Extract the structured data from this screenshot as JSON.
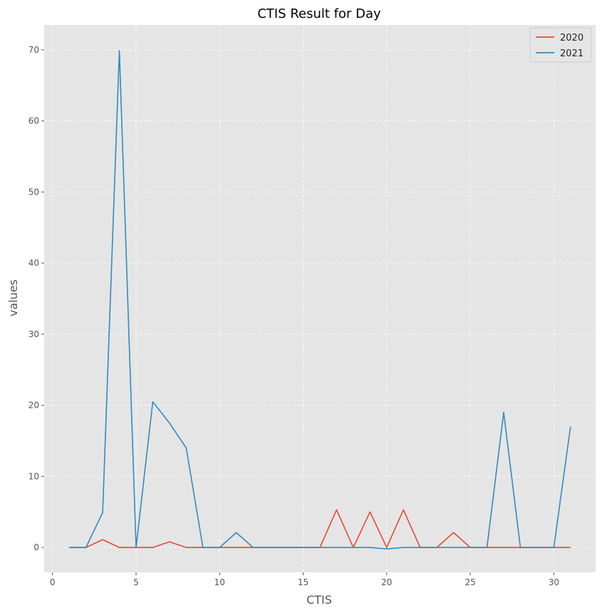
{
  "chart_data": {
    "type": "line",
    "title": "CTIS Result for Day",
    "xlabel": "CTIS",
    "ylabel": "values",
    "xlim": [
      -0.5,
      32.5
    ],
    "ylim": [
      -3.5,
      73.5
    ],
    "xticks": [
      0,
      5,
      10,
      15,
      20,
      25,
      30
    ],
    "yticks": [
      0,
      10,
      20,
      30,
      40,
      50,
      60,
      70
    ],
    "grid": true,
    "legend_position": "top-right",
    "x": [
      1,
      2,
      3,
      4,
      5,
      6,
      7,
      8,
      9,
      10,
      11,
      12,
      13,
      14,
      15,
      16,
      17,
      18,
      19,
      20,
      21,
      22,
      23,
      24,
      25,
      26,
      27,
      28,
      29,
      30,
      31
    ],
    "series": [
      {
        "name": "2020",
        "color": "#E24A33",
        "values": [
          0,
          0,
          1.1,
          0,
          0,
          0,
          0.8,
          0,
          0,
          0,
          0,
          0,
          0,
          0,
          0,
          0,
          5.3,
          0,
          5.0,
          0,
          5.3,
          0,
          0,
          2.1,
          0,
          0,
          0,
          0,
          0,
          0,
          0
        ]
      },
      {
        "name": "2021",
        "color": "#348ABD",
        "values": [
          0,
          0,
          4.9,
          69.9,
          0,
          20.5,
          17.5,
          14.0,
          0,
          0,
          2.1,
          0,
          0,
          0,
          0,
          0,
          0,
          0,
          0,
          -0.2,
          0,
          0,
          0,
          0,
          0,
          0,
          19.0,
          0,
          0,
          0,
          17.0
        ]
      }
    ],
    "colors": {
      "plot_background": "#E5E5E5",
      "grid": "#FFFFFF",
      "tick": "#555555"
    }
  }
}
